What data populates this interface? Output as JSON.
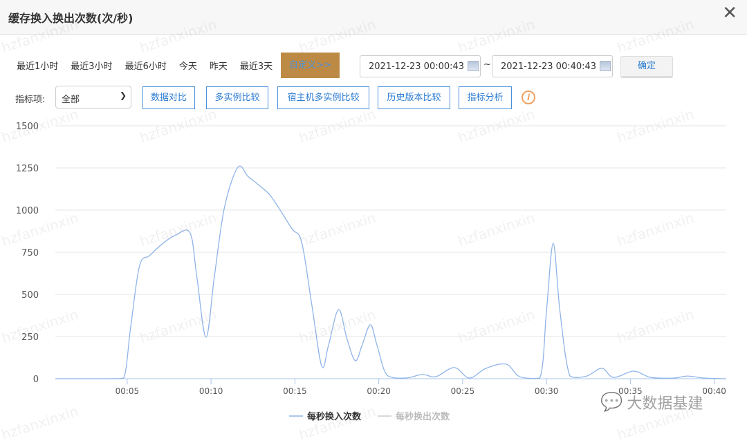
{
  "window": {
    "title": "缓存换入换出次数(次/秒)",
    "close_icon": "close-icon"
  },
  "ranges": [
    "最近1小时",
    "最近3小时",
    "最近6小时",
    "今天",
    "昨天",
    "最近3天"
  ],
  "custom_label": "自定义>>",
  "custom_color": "#bd8a46",
  "start_date": "2021-12-23 00:00:43",
  "end_date": "2021-12-23 00:40:43",
  "tilde": "~",
  "confirm_label": "确定",
  "metric_label": "指标项:",
  "metric_value": "全部",
  "buttons": [
    "数据对比",
    "多实例比较",
    "宿主机多实例比较",
    "历史版本比较",
    "指标分析"
  ],
  "info_icon": "i",
  "watermark": "hzfanxinxin",
  "logo_text": "大数据基建",
  "chart_data": {
    "type": "line",
    "ylim": [
      0,
      1500
    ],
    "yticks": [
      "0",
      "250",
      "500",
      "750",
      "1000",
      "1250",
      "1500"
    ],
    "xlim": [
      "00:00:43",
      "00:40:43"
    ],
    "xticks": [
      "00:05",
      "00:10",
      "00:15",
      "00:20",
      "00:25",
      "00:30",
      "00:35",
      "00:40"
    ],
    "grid": true,
    "legend_position": "bottom-left",
    "series": [
      {
        "name": "每秒换入次数",
        "color": "#8fb4e8",
        "active": true,
        "x": [
          "00:00:43",
          "00:04:00",
          "00:04:48",
          "00:05:12",
          "00:05:44",
          "00:06:20",
          "00:07:08",
          "00:07:54",
          "00:08:45",
          "00:09:09",
          "00:09:42",
          "00:10:12",
          "00:10:48",
          "00:11:36",
          "00:12:12",
          "00:12:48",
          "00:13:36",
          "00:14:48",
          "00:15:24",
          "00:16:00",
          "00:16:36",
          "00:17:00",
          "00:17:36",
          "00:18:06",
          "00:18:36",
          "00:19:00",
          "00:19:30",
          "00:19:54",
          "00:20:30",
          "00:21:36",
          "00:22:36",
          "00:23:24",
          "00:24:30",
          "00:25:24",
          "00:26:24",
          "00:27:36",
          "00:28:24",
          "00:29:36",
          "00:30:00",
          "00:30:24",
          "00:30:48",
          "00:31:24",
          "00:32:24",
          "00:33:18",
          "00:34:00",
          "00:35:12",
          "00:36:12",
          "00:37:36",
          "00:38:24",
          "00:39:24",
          "00:40:43"
        ],
        "y": [
          0,
          0,
          5,
          300,
          668,
          730,
          803,
          852,
          865,
          607,
          246,
          607,
          1016,
          1254,
          1200,
          1152,
          1078,
          893,
          811,
          443,
          74,
          197,
          410,
          238,
          107,
          197,
          320,
          197,
          20,
          4,
          25,
          12,
          66,
          4,
          62,
          86,
          12,
          4,
          402,
          803,
          402,
          16,
          16,
          62,
          8,
          45,
          8,
          4,
          16,
          4,
          0
        ]
      },
      {
        "name": "每秒换出次数",
        "color": "#cccccc",
        "active": false,
        "x": [],
        "y": []
      }
    ]
  }
}
